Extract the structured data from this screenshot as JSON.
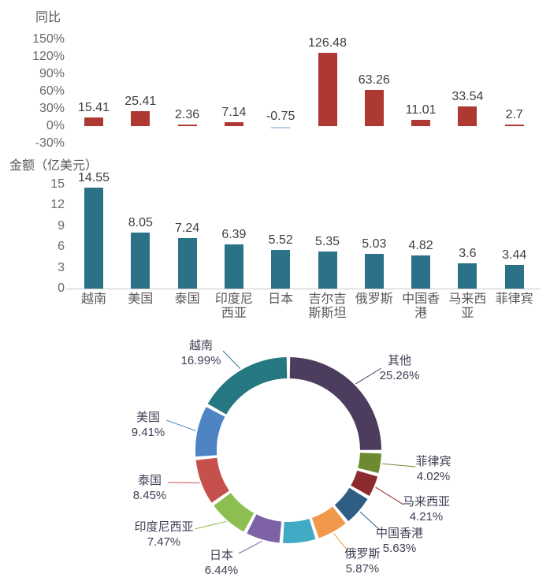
{
  "page": {
    "background": "#ffffff"
  },
  "colors": {
    "yoy_bar": "#ae3933",
    "yoy_negative_bar": "#bccee4",
    "amount_bar": "#2b7187",
    "tick_text": "#6a6a6a",
    "value_text": "#3f3f3f",
    "title_text": "#595959",
    "donut_label_text": "#3f4054",
    "axis_line": "#c9c9c9"
  },
  "chart_data": [
    {
      "type": "bar",
      "title": "同比",
      "categories": [
        "越南",
        "美国",
        "泰国",
        "印度尼西亚",
        "日本",
        "吉尔吉斯斯坦",
        "俄罗斯",
        "中国香港",
        "马来西亚",
        "菲律宾"
      ],
      "values": [
        15.41,
        25.41,
        2.36,
        7.14,
        -0.75,
        126.48,
        63.26,
        11.01,
        33.54,
        2.7
      ],
      "value_labels": [
        "15.41",
        "25.41",
        "2.36",
        "7.14",
        "-0.75",
        "126.48",
        "63.26",
        "11.01",
        "33.54",
        "2.7"
      ],
      "ytick_labels": [
        "150%",
        "120%",
        "90%",
        "60%",
        "30%",
        "0%",
        "-30%"
      ],
      "ytick_values": [
        150,
        120,
        90,
        60,
        30,
        0,
        -30
      ],
      "ylim": [
        -30,
        150
      ],
      "bar_color": "#ae3933",
      "negative_bar_color": "#bccee4",
      "category_labels_visible": false,
      "grid": false,
      "legend": "none"
    },
    {
      "type": "bar",
      "title": "金额（亿美元）",
      "categories": [
        "越南",
        "美国",
        "泰国",
        "印度尼西亚",
        "日本",
        "吉尔吉斯斯坦",
        "俄罗斯",
        "中国香港",
        "马来西亚",
        "菲律宾"
      ],
      "category_display": [
        "越南",
        "美国",
        "泰国",
        "印度尼\n西亚",
        "日本",
        "吉尔吉\n斯斯坦",
        "俄罗斯",
        "中国香\n港",
        "马来西\n亚",
        "菲律宾"
      ],
      "values": [
        14.55,
        8.05,
        7.24,
        6.39,
        5.52,
        5.35,
        5.03,
        4.82,
        3.6,
        3.44
      ],
      "value_labels": [
        "14.55",
        "8.05",
        "7.24",
        "6.39",
        "5.52",
        "5.35",
        "5.03",
        "4.82",
        "3.6",
        "3.44"
      ],
      "ytick_labels": [
        "15",
        "12",
        "9",
        "6",
        "3",
        "0"
      ],
      "ytick_values": [
        15,
        12,
        9,
        6,
        3,
        0
      ],
      "ylim": [
        0,
        15
      ],
      "bar_color": "#2b7187",
      "category_labels_visible": true,
      "grid": false,
      "legend": "none"
    },
    {
      "type": "pie",
      "donut": true,
      "start_angle": "12-oclock",
      "direction": "clockwise",
      "slices": [
        {
          "label": "其他",
          "value": 25.26,
          "pct_label": "25.26%",
          "color": "#4c3d5f"
        },
        {
          "label": "菲律宾",
          "value": 4.02,
          "pct_label": "4.02%",
          "color": "#6e8a31"
        },
        {
          "label": "马来西亚",
          "value": 4.21,
          "pct_label": "4.21%",
          "color": "#8c2a2d"
        },
        {
          "label": "中国香港",
          "value": 5.63,
          "pct_label": "5.63%",
          "color": "#2e5e84"
        },
        {
          "label": "俄罗斯",
          "value": 5.87,
          "pct_label": "5.87%",
          "color": "#f0994a"
        },
        {
          "label": "",
          "value": 6.25,
          "pct_label": "",
          "color": "#41abc5"
        },
        {
          "label": "日本",
          "value": 6.44,
          "pct_label": "6.44%",
          "color": "#7d63a6"
        },
        {
          "label": "印度尼西亚",
          "value": 7.47,
          "pct_label": "7.47%",
          "color": "#8dbe50"
        },
        {
          "label": "泰国",
          "value": 8.45,
          "pct_label": "8.45%",
          "color": "#c5504c"
        },
        {
          "label": "美国",
          "value": 9.41,
          "pct_label": "9.41%",
          "color": "#4f84c4"
        },
        {
          "label": "越南",
          "value": 16.99,
          "pct_label": "16.99%",
          "color": "#257882"
        }
      ]
    }
  ]
}
